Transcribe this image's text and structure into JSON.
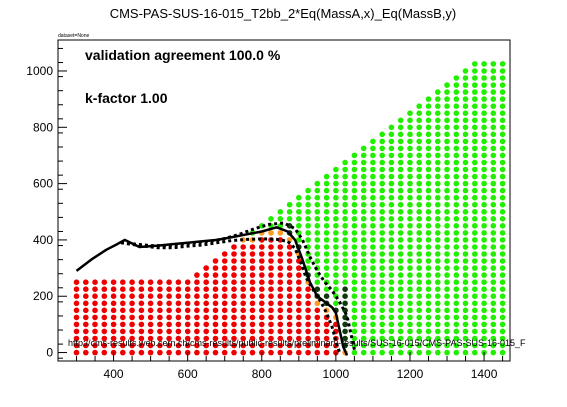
{
  "chart_data": {
    "type": "scatter",
    "title": "CMS-PAS-SUS-16-015_T2bb_2*Eq(MassA,x)_Eq(MassB,y)",
    "subtitle": "dataset=None",
    "xlabel": "",
    "ylabel": "",
    "xlim": [
      250,
      1470
    ],
    "ylim": [
      -30,
      1110
    ],
    "x_ticks": [
      400,
      600,
      800,
      1000,
      1200,
      1400
    ],
    "y_ticks": [
      0,
      200,
      400,
      600,
      800,
      1000
    ],
    "grid": false,
    "annotations": [
      "validation agreement 100.0 %",
      "k-factor 1.00",
      "http://cms-results.web.cern.ch/cms-results/public-results/preliminary-results/SUS-16-015/CMS-PAS-SUS-16-015_F"
    ],
    "point_grid": {
      "x_start": 300,
      "x_end": 1450,
      "x_step": 25,
      "y_start": 0,
      "y_step": 25,
      "y_max_rule": "y <= x - 350 (grid of signal points)"
    },
    "regions": {
      "green": "not excluded",
      "red": "excluded",
      "orange": "excluded (near boundary)",
      "dark_green": "not excluded (near boundary)"
    },
    "colors": {
      "green": "#22ee00",
      "red": "#ee0000",
      "orange": "#ff9a22",
      "dark_green": "#0e3a0e",
      "official_contour": "#000000"
    },
    "official_contour": {
      "style": "solid",
      "points": [
        [
          300,
          290
        ],
        [
          340,
          330
        ],
        [
          380,
          365
        ],
        [
          410,
          385
        ],
        [
          430,
          400
        ],
        [
          470,
          375
        ],
        [
          520,
          380
        ],
        [
          560,
          385
        ],
        [
          600,
          390
        ],
        [
          640,
          395
        ],
        [
          680,
          400
        ],
        [
          720,
          410
        ],
        [
          760,
          420
        ],
        [
          800,
          430
        ],
        [
          840,
          445
        ],
        [
          870,
          430
        ],
        [
          890,
          400
        ],
        [
          910,
          330
        ],
        [
          930,
          250
        ],
        [
          950,
          200
        ],
        [
          970,
          180
        ],
        [
          990,
          160
        ],
        [
          1000,
          140
        ],
        [
          1010,
          80
        ],
        [
          1020,
          20
        ],
        [
          1030,
          -10
        ]
      ]
    },
    "validation_contour": {
      "style": "dotted",
      "points": [
        [
          420,
          390
        ],
        [
          460,
          385
        ],
        [
          500,
          380
        ],
        [
          540,
          380
        ],
        [
          580,
          385
        ],
        [
          620,
          390
        ],
        [
          660,
          395
        ],
        [
          700,
          405
        ],
        [
          740,
          420
        ],
        [
          780,
          440
        ],
        [
          820,
          455
        ],
        [
          860,
          460
        ],
        [
          890,
          440
        ],
        [
          910,
          400
        ],
        [
          930,
          340
        ],
        [
          950,
          290
        ],
        [
          970,
          250
        ],
        [
          990,
          220
        ],
        [
          1010,
          180
        ],
        [
          1030,
          130
        ],
        [
          1040,
          70
        ],
        [
          1050,
          10
        ]
      ]
    },
    "validation_contour_inner": {
      "style": "dotted",
      "points": [
        [
          420,
          390
        ],
        [
          470,
          380
        ],
        [
          520,
          372
        ],
        [
          560,
          372
        ],
        [
          600,
          378
        ],
        [
          640,
          382
        ],
        [
          680,
          390
        ],
        [
          720,
          398
        ],
        [
          760,
          402
        ],
        [
          800,
          404
        ],
        [
          840,
          402
        ],
        [
          870,
          395
        ],
        [
          890,
          370
        ],
        [
          905,
          320
        ],
        [
          920,
          265
        ],
        [
          940,
          220
        ],
        [
          960,
          180
        ],
        [
          975,
          140
        ],
        [
          990,
          90
        ],
        [
          1000,
          40
        ],
        [
          1010,
          0
        ]
      ]
    }
  }
}
